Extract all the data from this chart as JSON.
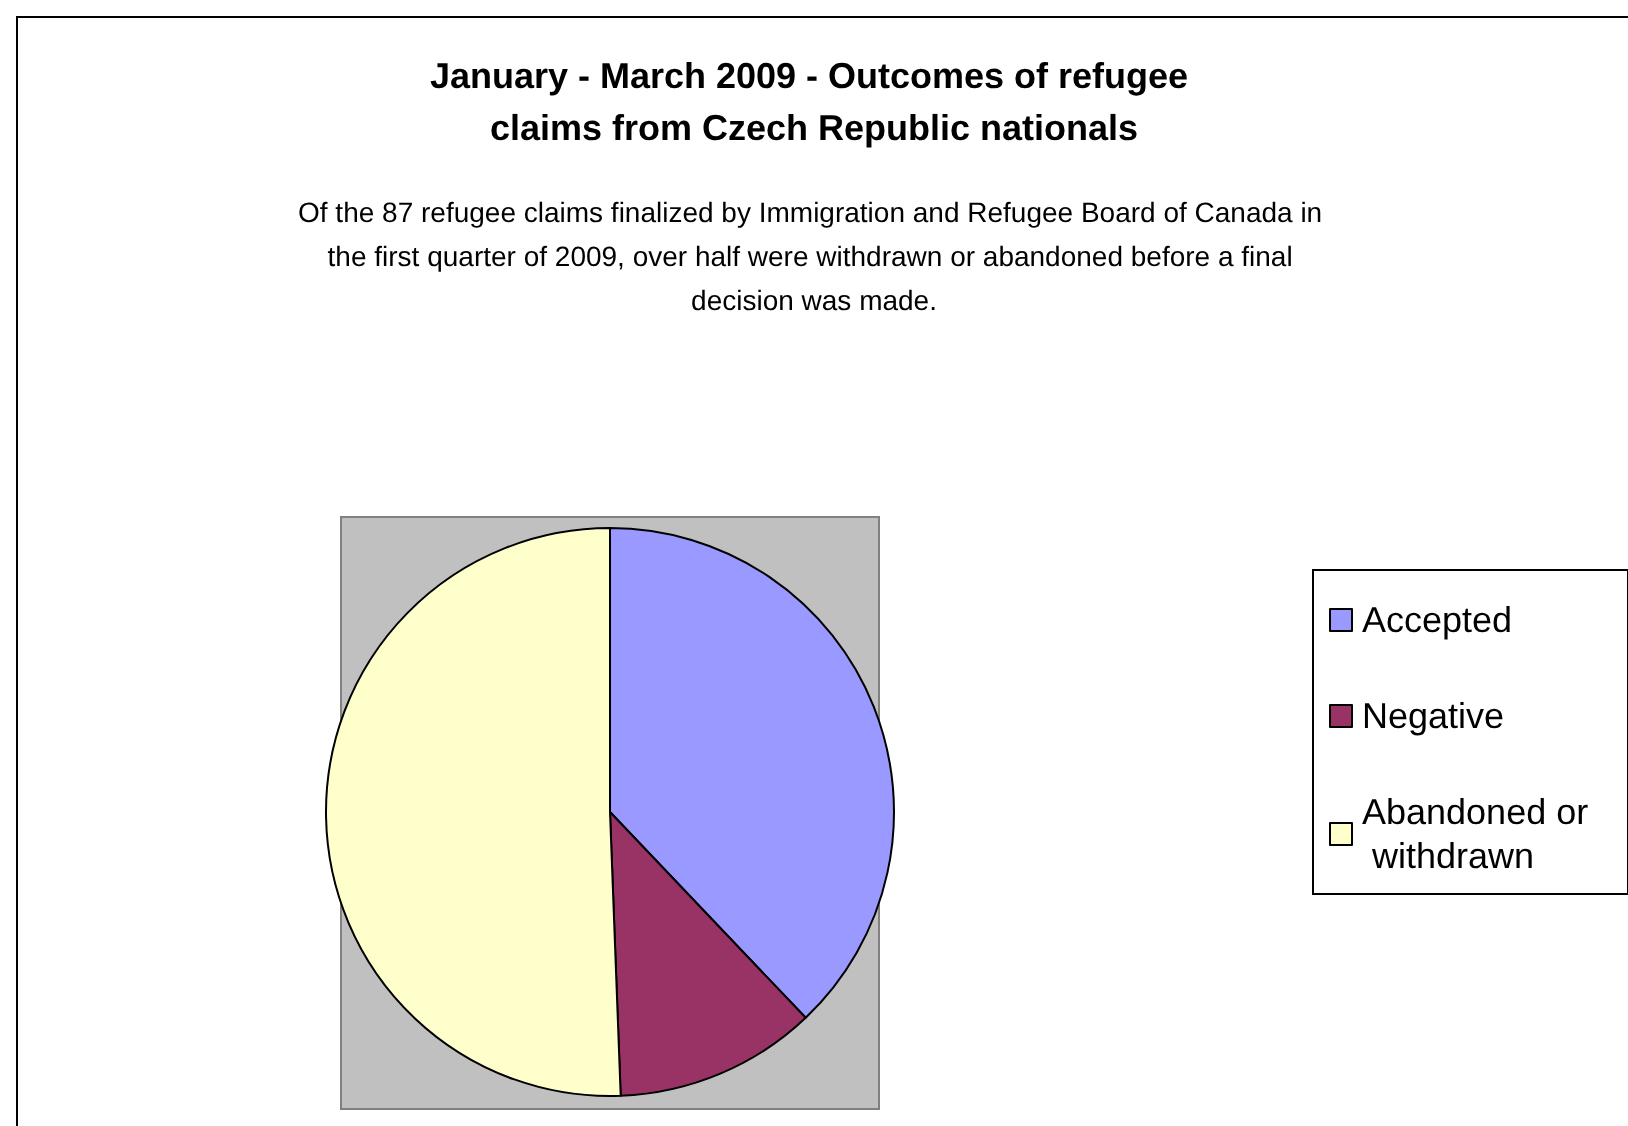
{
  "chart_data": {
    "type": "pie",
    "title": "January - March 2009 - Outcomes of refugee claims from Czech Republic nationals",
    "subtitle": "Of the 87 refugee claims finalized by Immigration and Refugee Board of Canada in the first quarter of 2009, over half were withdrawn or abandoned before a final decision was made.",
    "categories": [
      "Accepted",
      "Negative",
      "Abandoned or withdrawn"
    ],
    "values": [
      37.9,
      11.5,
      50.6
    ],
    "colors": [
      "#9999ff",
      "#993366",
      "#ffffcc"
    ],
    "legend": "right"
  }
}
